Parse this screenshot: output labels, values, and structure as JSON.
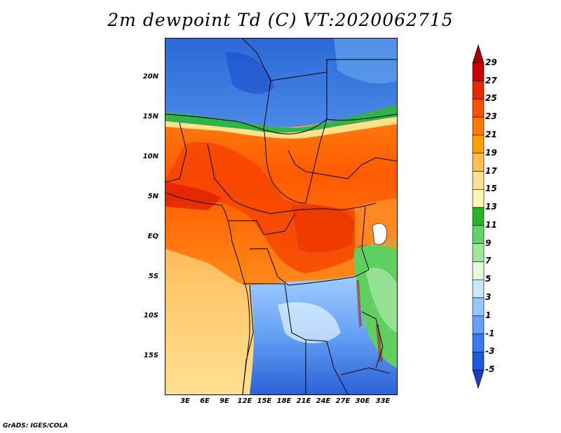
{
  "title": "2m dewpoint Td (C) VT:2020062715",
  "credit": "GrADS: IGES/COLA",
  "lat_labels": [
    "20N",
    "15N",
    "10N",
    "5N",
    "EQ",
    "5S",
    "10S",
    "15S"
  ],
  "lon_labels": [
    "3E",
    "6E",
    "9E",
    "12E",
    "15E",
    "18E",
    "21E",
    "24E",
    "27E",
    "30E",
    "33E"
  ],
  "colorbar": {
    "labels": [
      "29",
      "27",
      "25",
      "23",
      "21",
      "19",
      "17",
      "15",
      "13",
      "11",
      "9",
      "7",
      "5",
      "3",
      "1",
      "-1",
      "-3",
      "-5"
    ],
    "colors": [
      "#a50000",
      "#c80000",
      "#e62800",
      "#ff5000",
      "#ff7800",
      "#ffa000",
      "#ffc050",
      "#ffe08c",
      "#fff5b4",
      "#28b428",
      "#64d264",
      "#a0e6a0",
      "#e6fadc",
      "#c8e6ff",
      "#96c8ff",
      "#64a0ff",
      "#3c78f0",
      "#1e5adc",
      "#1e3cc8"
    ]
  }
}
